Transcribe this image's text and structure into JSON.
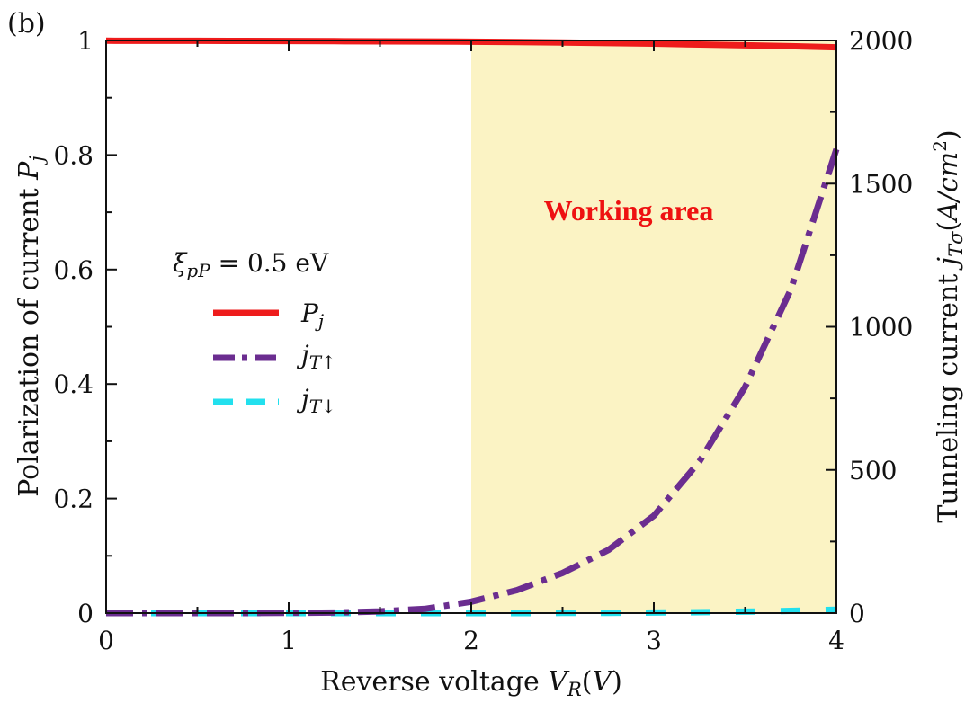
{
  "chart_data": {
    "type": "line",
    "panel_label": "(b)",
    "x": [
      0,
      0.25,
      0.5,
      0.75,
      1.0,
      1.25,
      1.5,
      1.75,
      2.0,
      2.25,
      2.5,
      2.75,
      3.0,
      3.25,
      3.5,
      3.75,
      4.0
    ],
    "xlabel": "Reverse voltage V_R(V)",
    "ylabel_left": "Polarization of current P_j",
    "ylabel_right": "Tunneling current j_Tσ(A/cm²)",
    "xlim": [
      0,
      4
    ],
    "ylim_left": [
      0,
      1
    ],
    "ylim_right": [
      0,
      2000
    ],
    "xticks": [
      "0",
      "1",
      "2",
      "3",
      "4"
    ],
    "yticks_left": [
      "0",
      "0.2",
      "0.4",
      "0.6",
      "0.8",
      "1"
    ],
    "yticks_right": [
      "0",
      "500",
      "1000",
      "1500",
      "2000"
    ],
    "grid": false,
    "series": [
      {
        "name": "P_j",
        "axis": "left",
        "style": "solid",
        "color": "#ee1c1c",
        "values": [
          0.9995,
          0.9994,
          0.9993,
          0.9992,
          0.999,
          0.9988,
          0.9985,
          0.9982,
          0.9978,
          0.9972,
          0.9965,
          0.9955,
          0.9945,
          0.993,
          0.9915,
          0.99,
          0.988
        ]
      },
      {
        "name": "j_T↑",
        "axis": "right",
        "style": "dashdot",
        "color": "#6b2d90",
        "values": [
          0,
          0,
          0,
          0,
          1,
          2,
          6,
          15,
          40,
          80,
          140,
          220,
          340,
          530,
          790,
          1130,
          1620
        ]
      },
      {
        "name": "j_T↓",
        "axis": "right",
        "style": "dashed",
        "color": "#22e0ee",
        "values": [
          0,
          0,
          0,
          0,
          0,
          0,
          0,
          0,
          0,
          0,
          0.5,
          1,
          2,
          3,
          5,
          8,
          12
        ]
      }
    ],
    "legend_title": "ξ_pP = 0.5 eV",
    "legend_position": "center-left",
    "shaded_region": {
      "x_from": 2,
      "x_to": 4,
      "color": "#fbf3c4"
    },
    "annotation": {
      "text": "Working area",
      "color": "#ee1111"
    }
  }
}
